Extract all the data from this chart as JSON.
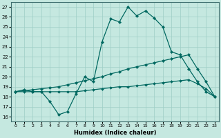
{
  "xlabel": "Humidex (Indice chaleur)",
  "bg_color": "#c5e8e0",
  "grid_color": "#9ecec5",
  "line_color": "#006860",
  "xlim": [
    -0.5,
    23.5
  ],
  "ylim": [
    15.5,
    27.5
  ],
  "xticks": [
    0,
    1,
    2,
    3,
    4,
    5,
    6,
    7,
    8,
    9,
    10,
    11,
    12,
    13,
    14,
    15,
    16,
    17,
    18,
    19,
    20,
    21,
    22,
    23
  ],
  "yticks": [
    16,
    17,
    18,
    19,
    20,
    21,
    22,
    23,
    24,
    25,
    26,
    27
  ],
  "line1_x": [
    0,
    1,
    2,
    3,
    4,
    5,
    6,
    7,
    8,
    9,
    10,
    11,
    12,
    13,
    14,
    15,
    16,
    17,
    18,
    19,
    20,
    21,
    22,
    23
  ],
  "line1_y": [
    18.5,
    18.7,
    18.5,
    18.5,
    17.5,
    16.2,
    16.5,
    18.3,
    20.0,
    19.5,
    23.5,
    25.8,
    25.5,
    27.0,
    26.1,
    26.6,
    25.9,
    25.0,
    22.5,
    22.2,
    20.8,
    19.5,
    18.5,
    18.0
  ],
  "line2_x": [
    0,
    1,
    2,
    3,
    4,
    5,
    6,
    7,
    8,
    9,
    10,
    11,
    12,
    13,
    14,
    15,
    16,
    17,
    18,
    19,
    20,
    21,
    22,
    23
  ],
  "line2_y": [
    18.5,
    18.6,
    18.7,
    18.8,
    18.9,
    19.0,
    19.2,
    19.4,
    19.6,
    19.8,
    20.0,
    20.3,
    20.5,
    20.8,
    21.0,
    21.2,
    21.4,
    21.6,
    21.8,
    22.0,
    22.2,
    20.8,
    19.5,
    18.0
  ],
  "line3_x": [
    0,
    1,
    2,
    3,
    4,
    5,
    6,
    7,
    8,
    9,
    10,
    11,
    12,
    13,
    14,
    15,
    16,
    17,
    18,
    19,
    20,
    21,
    22,
    23
  ],
  "line3_y": [
    18.5,
    18.5,
    18.5,
    18.5,
    18.5,
    18.5,
    18.5,
    18.5,
    18.6,
    18.7,
    18.8,
    18.9,
    19.0,
    19.0,
    19.1,
    19.2,
    19.3,
    19.4,
    19.5,
    19.6,
    19.7,
    19.3,
    18.8,
    18.0
  ]
}
